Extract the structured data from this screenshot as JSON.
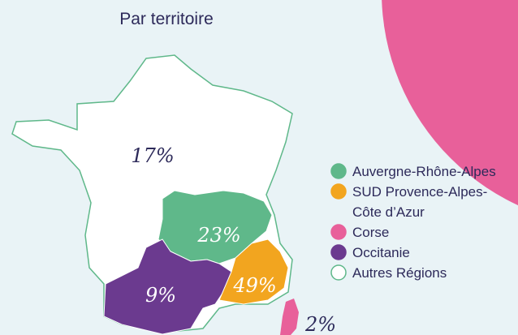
{
  "header": {
    "title": "Par territoire"
  },
  "regions": [
    {
      "name": "Autres Régions",
      "share": "17%"
    },
    {
      "name": "Auvergne-Rhône-Alpes",
      "share": "23%"
    },
    {
      "name": "SUD Provence-Alpes-Côte d’Azur",
      "share": "49%"
    },
    {
      "name": "Occitanie",
      "share": "9%"
    },
    {
      "name": "Corse",
      "share": "2%"
    }
  ],
  "legend": [
    {
      "lines": [
        "Auvergne-Rhône-Alpes"
      ]
    },
    {
      "lines": [
        "SUD Provence-Alpes-",
        "Côte d’Azur"
      ]
    },
    {
      "lines": [
        "Corse"
      ]
    },
    {
      "lines": [
        "Occitanie"
      ]
    },
    {
      "lines": [
        "Autres Régions"
      ]
    }
  ]
}
